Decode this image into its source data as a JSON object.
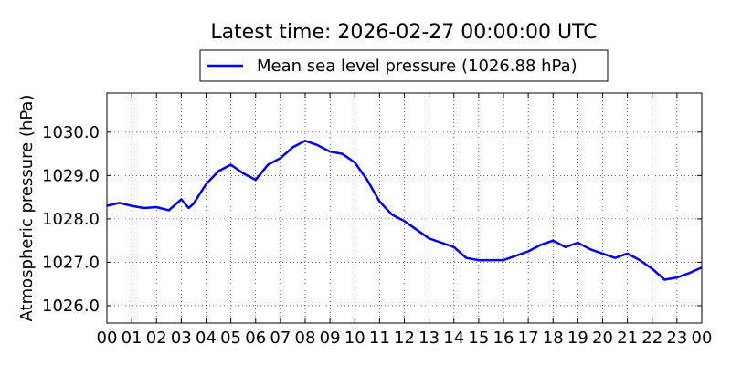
{
  "chart_data": {
    "type": "line",
    "title": "Latest time: 2026-02-27 00:00:00 UTC",
    "xlabel": "",
    "ylabel": "Atmospheric pressure (hPa)",
    "x_ticks": [
      "00",
      "01",
      "02",
      "03",
      "04",
      "05",
      "06",
      "07",
      "08",
      "09",
      "10",
      "11",
      "12",
      "13",
      "14",
      "15",
      "16",
      "17",
      "18",
      "19",
      "20",
      "21",
      "22",
      "23",
      "00"
    ],
    "y_ticks": [
      "1026.0",
      "1027.0",
      "1028.0",
      "1029.0",
      "1030.0"
    ],
    "ylim": [
      1025.6,
      1030.9
    ],
    "xlim_hours": [
      0,
      24
    ],
    "grid": true,
    "legend_placement": "top-center",
    "colors": {
      "series": "#0000ff",
      "axis": "#000000",
      "grid": "#000000"
    },
    "series": [
      {
        "name": "Mean sea level pressure (1026.88 hPa)",
        "x_hours": [
          0,
          0.5,
          1.0,
          1.5,
          2.0,
          2.5,
          3.0,
          3.3,
          3.5,
          4.0,
          4.5,
          5.0,
          5.5,
          6.0,
          6.5,
          7.0,
          7.5,
          8.0,
          8.5,
          9.0,
          9.5,
          10.0,
          10.5,
          11.0,
          11.5,
          12.0,
          12.5,
          13.0,
          13.5,
          14.0,
          14.5,
          15.0,
          15.5,
          16.0,
          16.5,
          17.0,
          17.5,
          18.0,
          18.5,
          19.0,
          19.5,
          20.0,
          20.5,
          21.0,
          21.5,
          22.0,
          22.5,
          23.0,
          23.5,
          24.0
        ],
        "values": [
          1028.3,
          1028.37,
          1028.3,
          1028.25,
          1028.27,
          1028.2,
          1028.45,
          1028.25,
          1028.35,
          1028.8,
          1029.1,
          1029.25,
          1029.05,
          1028.9,
          1029.25,
          1029.4,
          1029.65,
          1029.8,
          1029.7,
          1029.55,
          1029.5,
          1029.3,
          1028.9,
          1028.4,
          1028.1,
          1027.95,
          1027.75,
          1027.55,
          1027.45,
          1027.35,
          1027.1,
          1027.05,
          1027.05,
          1027.05,
          1027.15,
          1027.25,
          1027.4,
          1027.5,
          1027.35,
          1027.45,
          1027.3,
          1027.2,
          1027.1,
          1027.2,
          1027.05,
          1026.85,
          1026.6,
          1026.65,
          1026.75,
          1026.88
        ]
      }
    ]
  }
}
